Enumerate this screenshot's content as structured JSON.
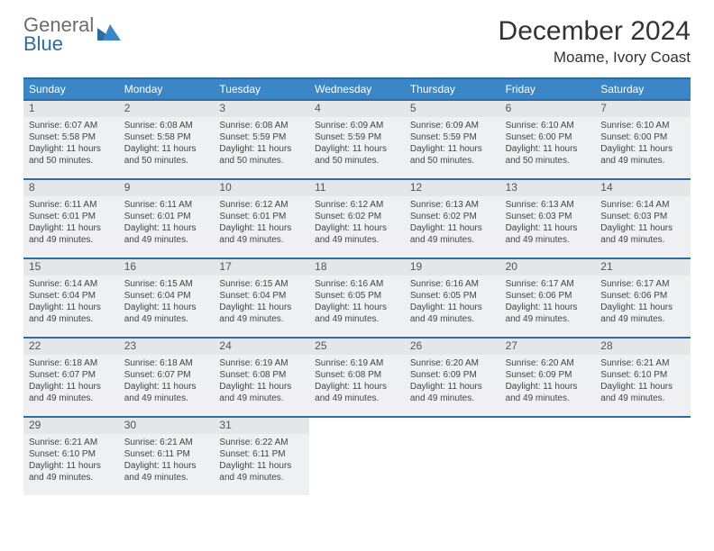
{
  "logo": {
    "line1": "General",
    "line2": "Blue"
  },
  "title": {
    "month": "December 2024",
    "location": "Moame, Ivory Coast"
  },
  "daysOfWeek": [
    "Sunday",
    "Monday",
    "Tuesday",
    "Wednesday",
    "Thursday",
    "Friday",
    "Saturday"
  ],
  "style": {
    "header_bg": "#3b86c6",
    "header_fg": "#ffffff",
    "cell_border": "#2d6ba3",
    "cell_bg": "#eef0f1",
    "daynum_bg": "#e4e6e8",
    "month_fontsize": 30,
    "location_fontsize": 17,
    "dow_fontsize": 12,
    "daynum_fontsize": 12,
    "body_fontsize": 10
  },
  "days": [
    {
      "n": "1",
      "sunrise": "6:07 AM",
      "sunset": "5:58 PM",
      "daylight": "11 hours and 50 minutes."
    },
    {
      "n": "2",
      "sunrise": "6:08 AM",
      "sunset": "5:58 PM",
      "daylight": "11 hours and 50 minutes."
    },
    {
      "n": "3",
      "sunrise": "6:08 AM",
      "sunset": "5:59 PM",
      "daylight": "11 hours and 50 minutes."
    },
    {
      "n": "4",
      "sunrise": "6:09 AM",
      "sunset": "5:59 PM",
      "daylight": "11 hours and 50 minutes."
    },
    {
      "n": "5",
      "sunrise": "6:09 AM",
      "sunset": "5:59 PM",
      "daylight": "11 hours and 50 minutes."
    },
    {
      "n": "6",
      "sunrise": "6:10 AM",
      "sunset": "6:00 PM",
      "daylight": "11 hours and 50 minutes."
    },
    {
      "n": "7",
      "sunrise": "6:10 AM",
      "sunset": "6:00 PM",
      "daylight": "11 hours and 49 minutes."
    },
    {
      "n": "8",
      "sunrise": "6:11 AM",
      "sunset": "6:01 PM",
      "daylight": "11 hours and 49 minutes."
    },
    {
      "n": "9",
      "sunrise": "6:11 AM",
      "sunset": "6:01 PM",
      "daylight": "11 hours and 49 minutes."
    },
    {
      "n": "10",
      "sunrise": "6:12 AM",
      "sunset": "6:01 PM",
      "daylight": "11 hours and 49 minutes."
    },
    {
      "n": "11",
      "sunrise": "6:12 AM",
      "sunset": "6:02 PM",
      "daylight": "11 hours and 49 minutes."
    },
    {
      "n": "12",
      "sunrise": "6:13 AM",
      "sunset": "6:02 PM",
      "daylight": "11 hours and 49 minutes."
    },
    {
      "n": "13",
      "sunrise": "6:13 AM",
      "sunset": "6:03 PM",
      "daylight": "11 hours and 49 minutes."
    },
    {
      "n": "14",
      "sunrise": "6:14 AM",
      "sunset": "6:03 PM",
      "daylight": "11 hours and 49 minutes."
    },
    {
      "n": "15",
      "sunrise": "6:14 AM",
      "sunset": "6:04 PM",
      "daylight": "11 hours and 49 minutes."
    },
    {
      "n": "16",
      "sunrise": "6:15 AM",
      "sunset": "6:04 PM",
      "daylight": "11 hours and 49 minutes."
    },
    {
      "n": "17",
      "sunrise": "6:15 AM",
      "sunset": "6:04 PM",
      "daylight": "11 hours and 49 minutes."
    },
    {
      "n": "18",
      "sunrise": "6:16 AM",
      "sunset": "6:05 PM",
      "daylight": "11 hours and 49 minutes."
    },
    {
      "n": "19",
      "sunrise": "6:16 AM",
      "sunset": "6:05 PM",
      "daylight": "11 hours and 49 minutes."
    },
    {
      "n": "20",
      "sunrise": "6:17 AM",
      "sunset": "6:06 PM",
      "daylight": "11 hours and 49 minutes."
    },
    {
      "n": "21",
      "sunrise": "6:17 AM",
      "sunset": "6:06 PM",
      "daylight": "11 hours and 49 minutes."
    },
    {
      "n": "22",
      "sunrise": "6:18 AM",
      "sunset": "6:07 PM",
      "daylight": "11 hours and 49 minutes."
    },
    {
      "n": "23",
      "sunrise": "6:18 AM",
      "sunset": "6:07 PM",
      "daylight": "11 hours and 49 minutes."
    },
    {
      "n": "24",
      "sunrise": "6:19 AM",
      "sunset": "6:08 PM",
      "daylight": "11 hours and 49 minutes."
    },
    {
      "n": "25",
      "sunrise": "6:19 AM",
      "sunset": "6:08 PM",
      "daylight": "11 hours and 49 minutes."
    },
    {
      "n": "26",
      "sunrise": "6:20 AM",
      "sunset": "6:09 PM",
      "daylight": "11 hours and 49 minutes."
    },
    {
      "n": "27",
      "sunrise": "6:20 AM",
      "sunset": "6:09 PM",
      "daylight": "11 hours and 49 minutes."
    },
    {
      "n": "28",
      "sunrise": "6:21 AM",
      "sunset": "6:10 PM",
      "daylight": "11 hours and 49 minutes."
    },
    {
      "n": "29",
      "sunrise": "6:21 AM",
      "sunset": "6:10 PM",
      "daylight": "11 hours and 49 minutes."
    },
    {
      "n": "30",
      "sunrise": "6:21 AM",
      "sunset": "6:11 PM",
      "daylight": "11 hours and 49 minutes."
    },
    {
      "n": "31",
      "sunrise": "6:22 AM",
      "sunset": "6:11 PM",
      "daylight": "11 hours and 49 minutes."
    }
  ],
  "labels": {
    "sunrise": "Sunrise:",
    "sunset": "Sunset:",
    "daylight": "Daylight:"
  },
  "calendar": {
    "first_day_column": 0,
    "trailing_empty": 4
  }
}
